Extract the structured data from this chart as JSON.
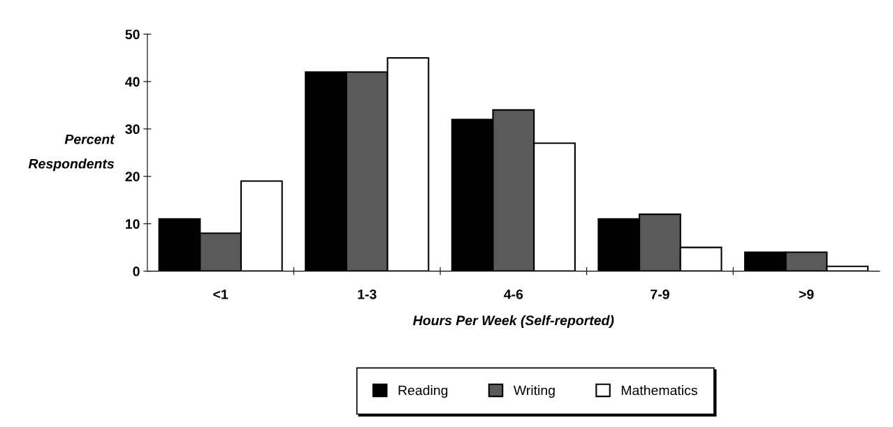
{
  "chart_data": {
    "type": "bar",
    "xlabel": "Hours Per Week (Self-reported)",
    "ylabel": "Percent\nRespondents",
    "categories": [
      "<1",
      "1-3",
      "4-6",
      "7-9",
      ">9"
    ],
    "series": [
      {
        "name": "Reading",
        "color": "#000000",
        "values": [
          11,
          42,
          32,
          11,
          4
        ]
      },
      {
        "name": "Writing",
        "color": "#5a5a5a",
        "values": [
          8,
          42,
          34,
          12,
          4
        ]
      },
      {
        "name": "Mathematics",
        "color": "#ffffff",
        "values": [
          19,
          45,
          27,
          5,
          1
        ]
      }
    ],
    "ylim": [
      0,
      50
    ],
    "yticks": [
      0,
      10,
      20,
      30,
      40,
      50
    ],
    "grid": false,
    "legend": "bottom"
  }
}
